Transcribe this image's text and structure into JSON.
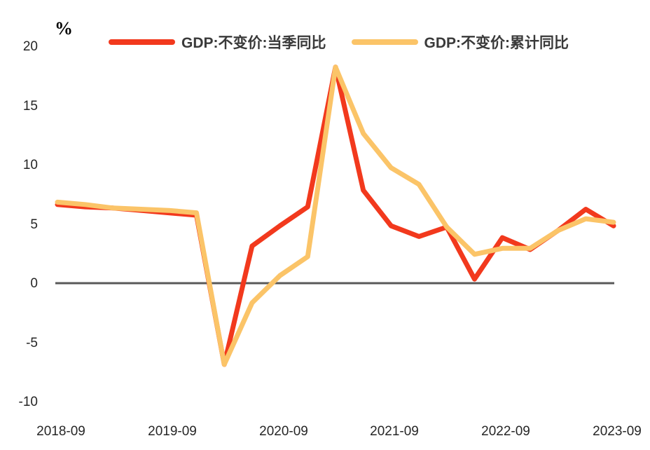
{
  "legend": {
    "items": [
      {
        "label": "GDP:不变价:当季同比",
        "color": "#f2391d"
      },
      {
        "label": "GDP:不变价:累计同比",
        "color": "#fbc468"
      }
    ]
  },
  "axis": {
    "zero_line_color": "#595959",
    "tick_color": "#262626"
  },
  "chart_data": {
    "type": "line",
    "title": "",
    "ylabel": "%",
    "xlabel": "",
    "grid": false,
    "legend_position": "top",
    "background": "#ffffff",
    "ylim": [
      -10,
      20
    ],
    "yticks": [
      20,
      15,
      10,
      5,
      0,
      -5,
      -10
    ],
    "xticks": [
      "2018-09",
      "2019-09",
      "2020-09",
      "2021-09",
      "2022-09",
      "2023-09"
    ],
    "x": [
      "2018-09",
      "2018-12",
      "2019-03",
      "2019-06",
      "2019-09",
      "2019-12",
      "2020-03",
      "2020-06",
      "2020-09",
      "2020-12",
      "2021-03",
      "2021-06",
      "2021-09",
      "2021-12",
      "2022-03",
      "2022-06",
      "2022-09",
      "2022-12",
      "2023-03",
      "2023-06",
      "2023-09"
    ],
    "series": [
      {
        "name": "GDP:不变价:当季同比",
        "color": "#f2391d",
        "line_width": 7,
        "values": [
          6.7,
          6.5,
          6.4,
          6.2,
          6.0,
          5.8,
          -6.8,
          3.2,
          4.9,
          6.5,
          18.3,
          7.9,
          4.9,
          4.0,
          4.8,
          0.4,
          3.9,
          2.9,
          4.5,
          6.3,
          4.9
        ]
      },
      {
        "name": "GDP:不变价:累计同比",
        "color": "#fbc468",
        "line_width": 7,
        "values": [
          6.9,
          6.7,
          6.4,
          6.3,
          6.2,
          6.0,
          -6.8,
          -1.6,
          0.7,
          2.3,
          18.3,
          12.7,
          9.8,
          8.4,
          4.8,
          2.5,
          3.0,
          3.0,
          4.5,
          5.5,
          5.2
        ]
      }
    ]
  }
}
